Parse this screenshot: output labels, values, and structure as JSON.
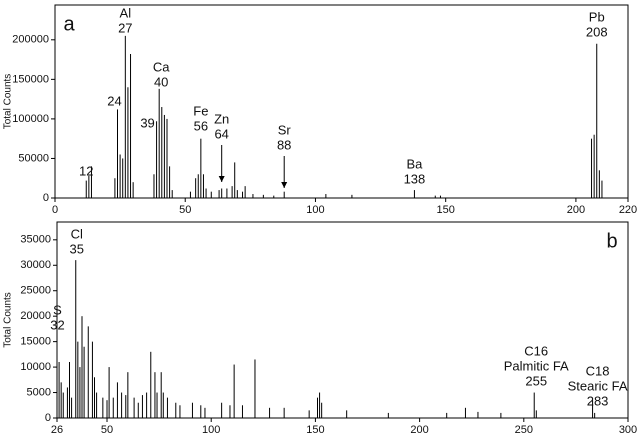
{
  "chart_data": [
    {
      "type": "bar",
      "panel_label": "a",
      "ylabel": "Total Counts",
      "color": "#000000",
      "x": [
        12,
        13,
        14,
        23,
        24,
        25,
        26,
        27,
        28,
        29,
        30,
        38,
        39,
        40,
        41,
        42,
        43,
        44,
        45,
        52,
        54,
        55,
        56,
        57,
        58,
        60,
        63,
        64,
        66,
        68,
        69,
        70,
        72,
        73,
        76,
        80,
        84,
        88,
        104,
        114,
        138,
        146,
        148,
        206,
        207,
        208,
        209,
        210
      ],
      "values": [
        22000,
        28000,
        40000,
        25000,
        112000,
        55000,
        50000,
        205000,
        140000,
        182000,
        20000,
        30000,
        97000,
        138000,
        115000,
        105000,
        100000,
        40000,
        10000,
        8000,
        25000,
        30000,
        75000,
        30000,
        12000,
        8000,
        10000,
        12000,
        12000,
        15000,
        45000,
        10000,
        8000,
        15000,
        5000,
        4000,
        3000,
        8000,
        5000,
        4000,
        10000,
        3000,
        3000,
        75000,
        80000,
        195000,
        35000,
        22000
      ],
      "xlim": [
        0,
        220
      ],
      "xticks": [
        0,
        50,
        100,
        150,
        200,
        220
      ],
      "ylim": [
        0,
        244000
      ],
      "yticks": [
        0,
        50000,
        100000,
        150000,
        200000
      ],
      "annotations": [
        {
          "mass": 12
        },
        {
          "element": "Al",
          "mass": 27
        },
        {
          "mass": 24
        },
        {
          "element": "Ca",
          "mass": 40
        },
        {
          "mass": 39
        },
        {
          "element": "Fe",
          "mass": 56
        },
        {
          "element": "Zn",
          "mass": 64
        },
        {
          "element": "Sr",
          "mass": 88
        },
        {
          "element": "Ba",
          "mass": 138
        },
        {
          "element": "Pb",
          "mass": 208
        }
      ]
    },
    {
      "type": "bar",
      "panel_label": "b",
      "ylabel": "Total Counts",
      "color": "#000000",
      "x": [
        27,
        28,
        29,
        31,
        32,
        33,
        35,
        36,
        37,
        38,
        39,
        41,
        43,
        44,
        45,
        48,
        50,
        51,
        53,
        55,
        57,
        59,
        60,
        63,
        65,
        67,
        69,
        71,
        73,
        74,
        76,
        77,
        79,
        83,
        85,
        91,
        95,
        97,
        105,
        109,
        111,
        115,
        121,
        128,
        135,
        147,
        151,
        152,
        153,
        165,
        185,
        213,
        222,
        228,
        239,
        255,
        256,
        283,
        284
      ],
      "values": [
        11000,
        7000,
        5000,
        6000,
        11000,
        4000,
        31000,
        15000,
        10000,
        20000,
        14000,
        18000,
        15000,
        8000,
        5000,
        4000,
        3500,
        10000,
        4000,
        7000,
        5000,
        4500,
        9000,
        4000,
        3000,
        4500,
        5000,
        13000,
        9000,
        5000,
        9000,
        5000,
        4000,
        3000,
        2500,
        3000,
        2500,
        2000,
        3000,
        2500,
        10500,
        2500,
        11500,
        2000,
        2000,
        1500,
        4000,
        5000,
        3000,
        1500,
        1000,
        1000,
        2000,
        1200,
        1000,
        5000,
        1500,
        3500,
        1000
      ],
      "xlim": [
        26,
        300
      ],
      "xticks": [
        26,
        50,
        100,
        150,
        200,
        250,
        300
      ],
      "ylim": [
        0,
        38500
      ],
      "yticks": [
        0,
        5000,
        10000,
        15000,
        20000,
        25000,
        30000,
        35000
      ],
      "annotations": [
        {
          "element": "Cl",
          "mass": 35
        },
        {
          "element": "S",
          "mass": 32
        },
        {
          "element": "C16",
          "name": "Palmitic FA",
          "mass": 255
        },
        {
          "element": "C18",
          "name": "Stearic FA",
          "mass": 283
        }
      ]
    }
  ]
}
